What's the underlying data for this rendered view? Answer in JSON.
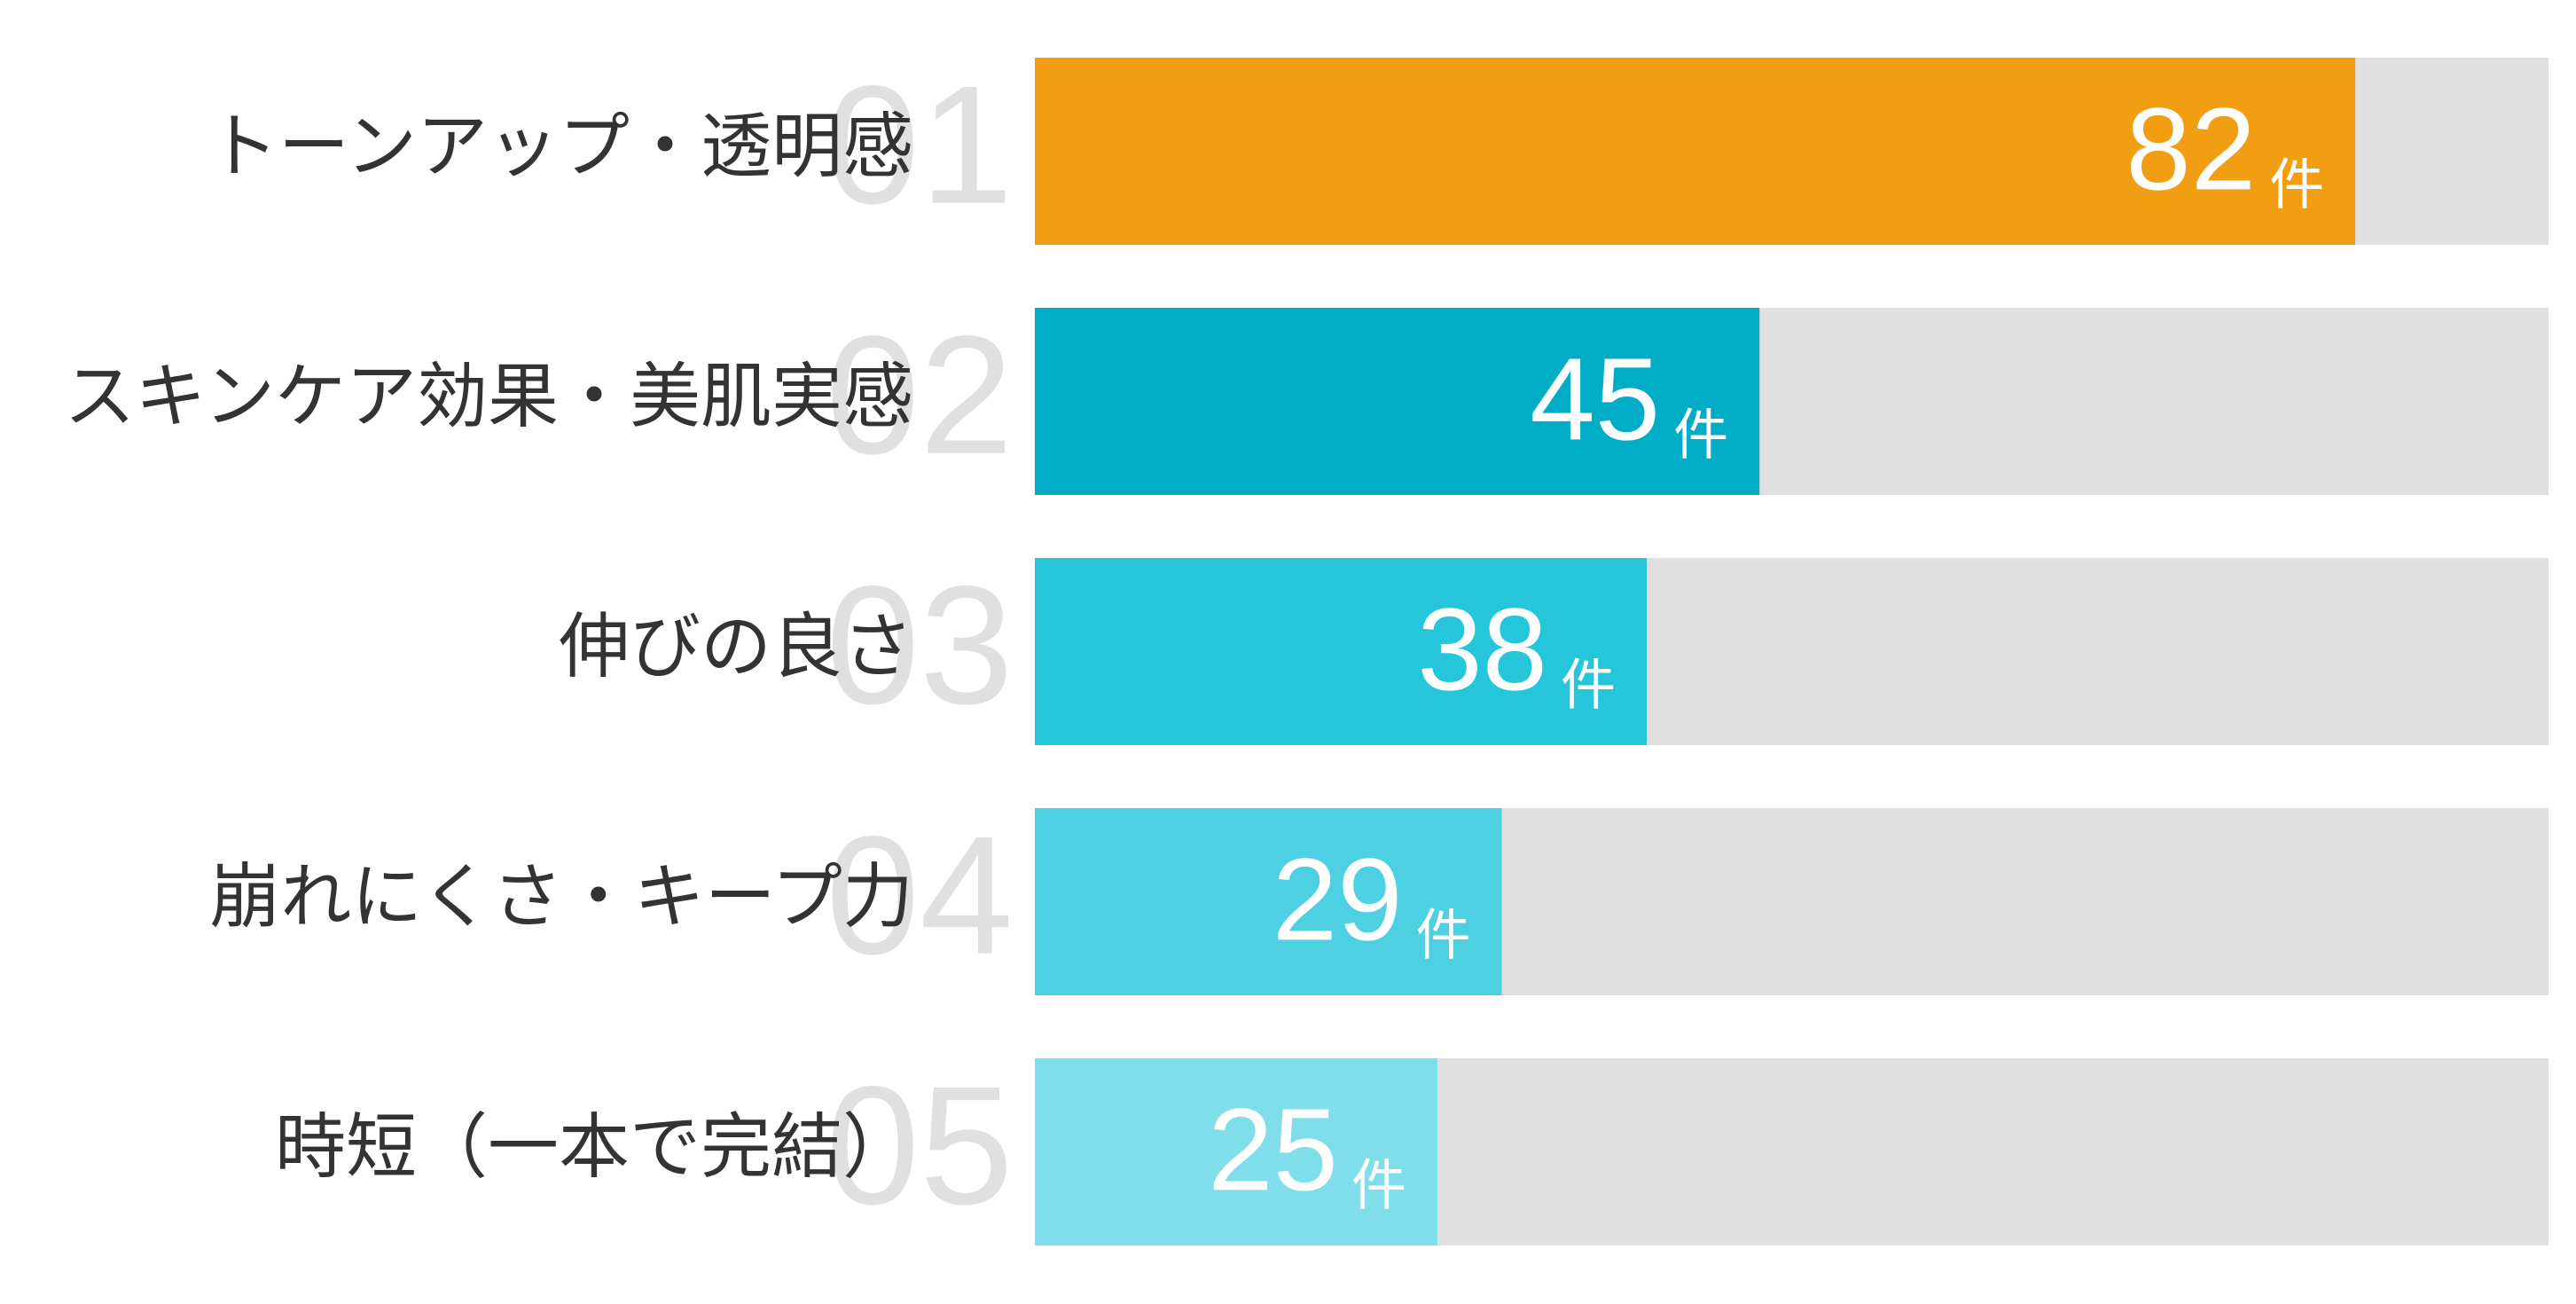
{
  "chart_data": {
    "type": "bar",
    "orientation": "horizontal",
    "categories": [
      "トーンアップ・透明感",
      "スキンケア効果・美肌実感",
      "伸びの良さ",
      "崩れにくさ・キープ力",
      "時短（一本で完結）"
    ],
    "ranks": [
      "01",
      "02",
      "03",
      "04",
      "05"
    ],
    "values": [
      82,
      45,
      38,
      29,
      25
    ],
    "unit": "件",
    "colors": [
      "#f29e13",
      "#00acc6",
      "#26c6da",
      "#4dd0e1",
      "#80deea"
    ],
    "track_color": "#e0e0e0",
    "xlim": [
      0,
      94
    ]
  }
}
